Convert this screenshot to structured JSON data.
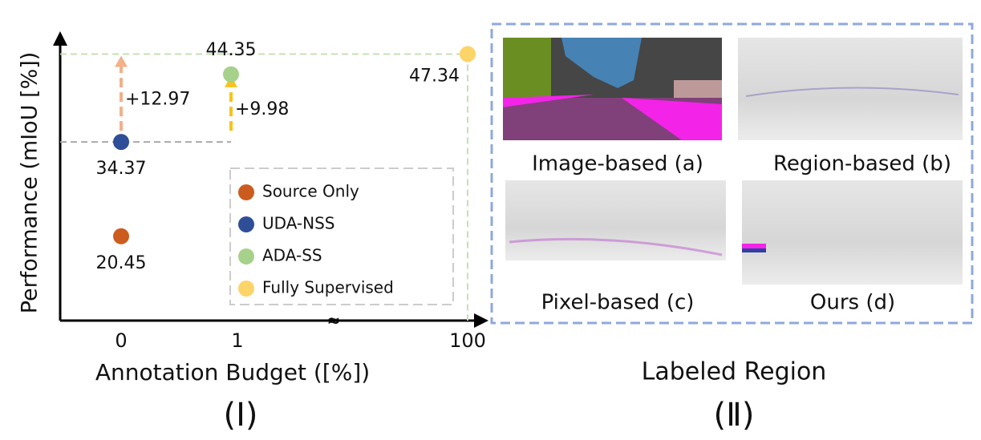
{
  "chart_data": {
    "type": "scatter",
    "xlabel": "Annotation Budget ([%])",
    "ylabel": "Performance (mIoU [%])",
    "caption": "(Ⅰ)",
    "categories": [
      "0",
      "1",
      "100"
    ],
    "ylim": [
      8,
      50
    ],
    "series": [
      {
        "name": "Source Only",
        "color": "#cc5c1e",
        "values": [
          20.45,
          null,
          null
        ]
      },
      {
        "name": "UDA-NSS",
        "color": "#2e4e98",
        "values": [
          34.37,
          null,
          null
        ]
      },
      {
        "name": "ADA-SS",
        "color": "#a6d18a",
        "values": [
          null,
          44.35,
          null
        ]
      },
      {
        "name": "Fully Supervised",
        "color": "#fcd467",
        "values": [
          null,
          null,
          47.34
        ]
      }
    ],
    "annotations": [
      {
        "text": "+12.97",
        "color": "#f3b08a"
      },
      {
        "text": "+9.98",
        "color": "#f7c21b"
      }
    ]
  },
  "panel": {
    "title": "Labeled Region",
    "caption": "(Ⅱ)",
    "images": [
      {
        "label": "Image-based (a)"
      },
      {
        "label": "Region-based (b)"
      },
      {
        "label": "Pixel-based (c)"
      },
      {
        "label": "Ours (d)"
      }
    ]
  }
}
